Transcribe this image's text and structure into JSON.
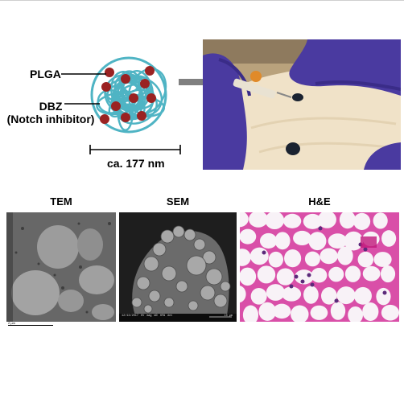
{
  "nanoparticle": {
    "shell_label": "PLGA",
    "drug_label_line1": "DBZ",
    "drug_label_line2": "(Notch inhibitor)",
    "size_label": "ca. 177 nm",
    "colors": {
      "shell": "#4fb4c4",
      "drug": "#9a2222"
    }
  },
  "injection_photo": {
    "colors": {
      "glove": "#4a3aa0",
      "skin": "#f0e2c8",
      "background": "#b9a27c",
      "ink": "#1a2230"
    }
  },
  "micrographs": [
    {
      "title": "TEM",
      "scale_bar": "2 µm"
    },
    {
      "title": "SEM",
      "info_bar": [
        "12/13/2017",
        "HV",
        "mag",
        "WD",
        "HFW",
        "det",
        "10 µm"
      ]
    },
    {
      "title": "H&E"
    }
  ]
}
